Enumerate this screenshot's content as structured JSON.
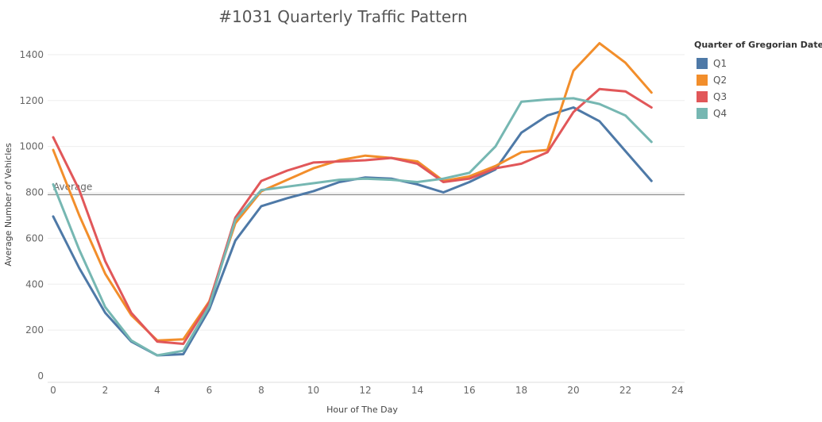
{
  "chart_data": {
    "type": "line",
    "title": "#1031 Quarterly Traffic Pattern",
    "xlabel": "Hour of The Day",
    "ylabel": "Average Number of Vehicles",
    "xlim": [
      0,
      24
    ],
    "ylim": [
      0,
      1500
    ],
    "xticks": [
      0,
      2,
      4,
      6,
      8,
      10,
      12,
      14,
      16,
      18,
      20,
      22,
      24
    ],
    "yticks": [
      0,
      200,
      400,
      600,
      800,
      1000,
      1200,
      1400
    ],
    "grid": "horizontal",
    "legend_title": "Quarter of Gregorian Date",
    "legend_position": "right",
    "reference_line": {
      "label": "Average",
      "value": 790
    },
    "x": [
      0,
      1,
      2,
      3,
      4,
      5,
      6,
      7,
      8,
      9,
      10,
      11,
      12,
      13,
      14,
      15,
      16,
      17,
      18,
      19,
      20,
      21,
      22,
      23
    ],
    "series": [
      {
        "name": "Q1",
        "color": "#4e79a7",
        "values": [
          695,
          470,
          275,
          150,
          90,
          95,
          290,
          590,
          740,
          775,
          805,
          845,
          865,
          860,
          835,
          800,
          845,
          900,
          1060,
          1135,
          1170,
          1110,
          980,
          850
        ]
      },
      {
        "name": "Q2",
        "color": "#f28e2b",
        "values": [
          985,
          700,
          445,
          265,
          155,
          160,
          325,
          665,
          805,
          855,
          905,
          940,
          960,
          950,
          935,
          850,
          870,
          915,
          975,
          985,
          1330,
          1450,
          1365,
          1235
        ]
      },
      {
        "name": "Q3",
        "color": "#e15759",
        "values": [
          1040,
          810,
          500,
          275,
          150,
          140,
          320,
          690,
          850,
          895,
          930,
          935,
          940,
          950,
          925,
          845,
          860,
          905,
          925,
          975,
          1150,
          1250,
          1240,
          1170
        ]
      },
      {
        "name": "Q4",
        "color": "#76b7b2",
        "values": [
          835,
          550,
          300,
          155,
          90,
          110,
          305,
          680,
          810,
          825,
          840,
          855,
          860,
          855,
          845,
          860,
          885,
          1000,
          1195,
          1205,
          1210,
          1185,
          1135,
          1020
        ]
      }
    ]
  }
}
